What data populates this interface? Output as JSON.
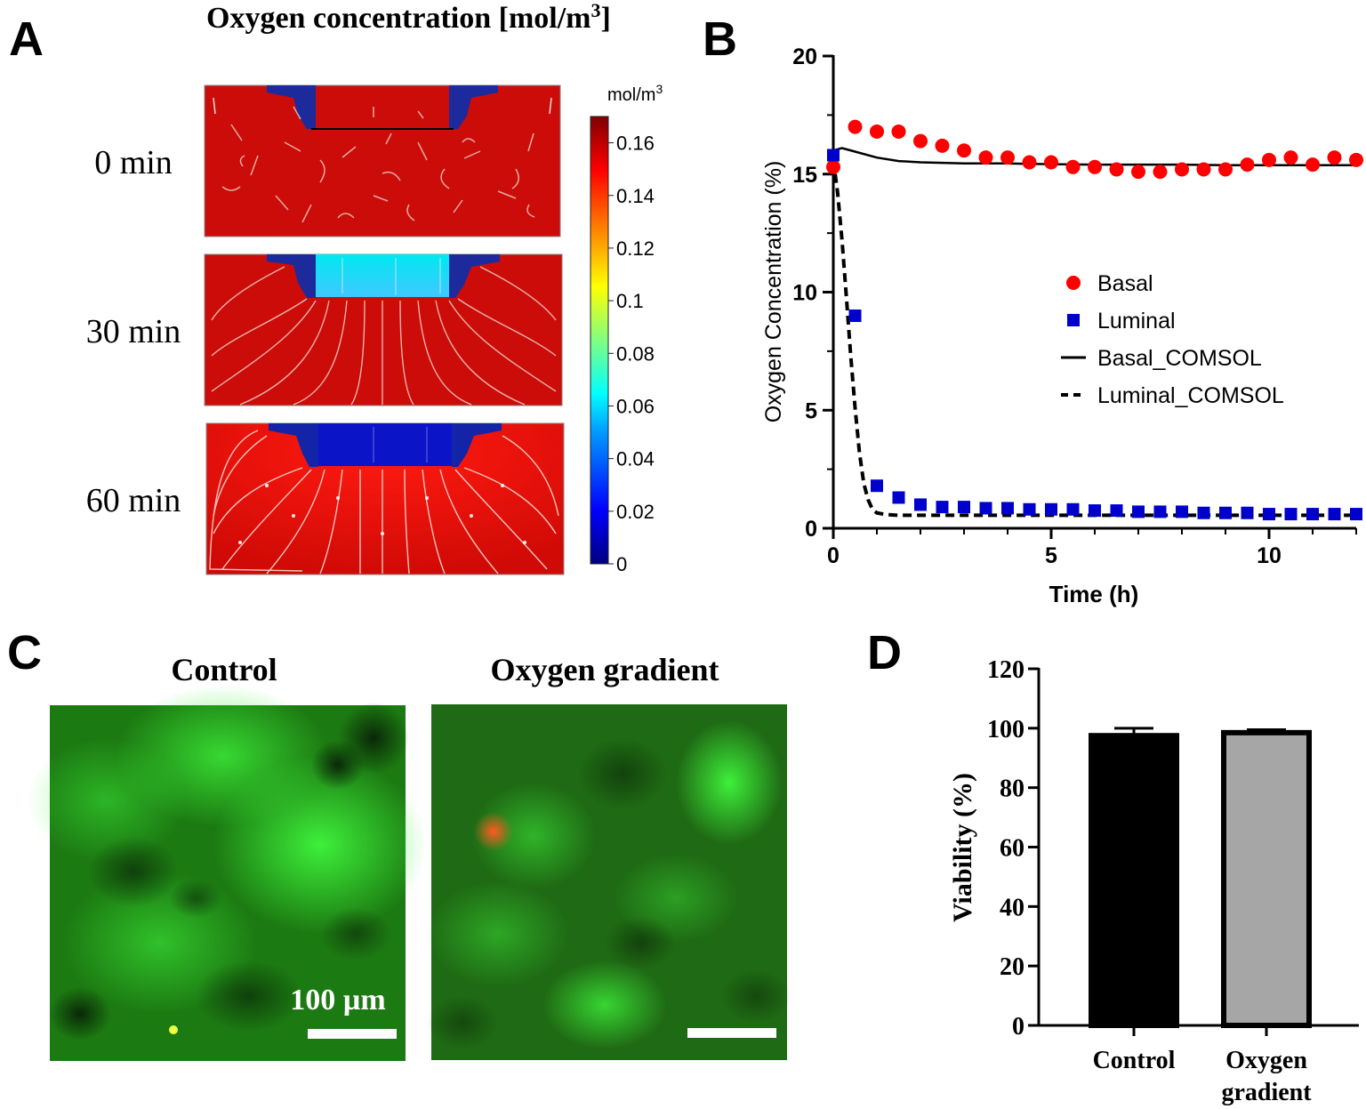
{
  "panels": {
    "a": "A",
    "b": "B",
    "c": "C",
    "d": "D"
  },
  "panel_a": {
    "title": "Oxygen concentration [mol/m",
    "title_sup": "3",
    "title_end": "]",
    "rows": [
      {
        "label": "0 min",
        "state": "initial"
      },
      {
        "label": "30 min",
        "state": "partial"
      },
      {
        "label": "60 min",
        "state": "depleted"
      }
    ],
    "colorbar": {
      "unit": "mol/m",
      "unit_sup": "3",
      "ticks": [
        "0.16",
        "0.14",
        "0.12",
        "0.1",
        "0.08",
        "0.06",
        "0.04",
        "0.02",
        "0"
      ],
      "tick_values": [
        0.16,
        0.14,
        0.12,
        0.1,
        0.08,
        0.06,
        0.04,
        0.02,
        0
      ],
      "range": [
        0,
        0.17
      ],
      "colors": [
        "#000080",
        "#0000ff",
        "#00a0ff",
        "#00ffff",
        "#80ff80",
        "#ffff00",
        "#ff8000",
        "#ff0000",
        "#800000"
      ]
    }
  },
  "panel_c": {
    "labels": [
      "Control",
      "Oxygen gradient"
    ],
    "scale_bar": "100 µm"
  },
  "chart_data": [
    {
      "type": "scatter",
      "panel": "B",
      "xlabel": "Time (h)",
      "ylabel": "Oxygen Concentration (%)",
      "xlim": [
        0,
        12
      ],
      "ylim": [
        0,
        20
      ],
      "xticks": [
        0,
        5,
        10
      ],
      "yticks": [
        0,
        5,
        10,
        15,
        20
      ],
      "legend": "center-right",
      "series": [
        {
          "name": "Basal",
          "kind": "circle",
          "color": "#ff0000",
          "x": [
            0,
            0.5,
            1,
            1.5,
            2,
            2.5,
            3,
            3.5,
            4,
            4.5,
            5,
            5.5,
            6,
            6.5,
            7,
            7.5,
            8,
            8.5,
            9,
            9.5,
            10,
            10.5,
            11,
            11.5,
            12
          ],
          "y": [
            15.3,
            17.0,
            16.8,
            16.8,
            16.4,
            16.2,
            16.0,
            15.7,
            15.7,
            15.5,
            15.5,
            15.3,
            15.3,
            15.2,
            15.1,
            15.1,
            15.2,
            15.2,
            15.2,
            15.4,
            15.6,
            15.7,
            15.4,
            15.7,
            15.6
          ]
        },
        {
          "name": "Luminal",
          "kind": "square",
          "color": "#0000cc",
          "x": [
            0,
            0.5,
            1,
            1.5,
            2,
            2.5,
            3,
            3.5,
            4,
            4.5,
            5,
            5.5,
            6,
            6.5,
            7,
            7.5,
            8,
            8.5,
            9,
            9.5,
            10,
            10.5,
            11,
            11.5,
            12
          ],
          "y": [
            15.8,
            9.0,
            1.8,
            1.3,
            1.0,
            0.9,
            0.9,
            0.85,
            0.85,
            0.8,
            0.8,
            0.8,
            0.75,
            0.75,
            0.7,
            0.7,
            0.7,
            0.65,
            0.65,
            0.65,
            0.6,
            0.6,
            0.6,
            0.6,
            0.6
          ]
        },
        {
          "name": "Basal_COMSOL",
          "kind": "line",
          "color": "#000000",
          "x": [
            0,
            0.2,
            0.5,
            1,
            1.5,
            2,
            3,
            4,
            5,
            6,
            7,
            8,
            9,
            10,
            11,
            12
          ],
          "y": [
            16.0,
            16.1,
            15.95,
            15.7,
            15.55,
            15.5,
            15.45,
            15.45,
            15.42,
            15.4,
            15.4,
            15.4,
            15.38,
            15.38,
            15.38,
            15.38
          ]
        },
        {
          "name": "Luminal_COMSOL",
          "kind": "dashed",
          "color": "#000000",
          "x": [
            0,
            0.1,
            0.2,
            0.3,
            0.4,
            0.5,
            0.6,
            0.7,
            0.8,
            0.9,
            1.0,
            1.2,
            1.5,
            2,
            3,
            4,
            6,
            8,
            10,
            12
          ],
          "y": [
            15.6,
            14.2,
            12.2,
            9.8,
            7.3,
            5.1,
            3.2,
            1.9,
            1.2,
            0.8,
            0.65,
            0.58,
            0.55,
            0.55,
            0.55,
            0.55,
            0.55,
            0.55,
            0.55,
            0.55
          ]
        }
      ]
    },
    {
      "type": "bar",
      "panel": "D",
      "categories": [
        "Control",
        "Oxygen gradient"
      ],
      "category_lines": [
        [
          "Control"
        ],
        [
          "Oxygen",
          "gradient"
        ]
      ],
      "values": [
        97.5,
        98.5
      ],
      "errors": [
        2.5,
        1.0
      ],
      "colors": [
        "#000000",
        "#a6a6a6"
      ],
      "xlabel": "",
      "ylabel": "Viability (%)",
      "ylim": [
        0,
        120
      ],
      "yticks": [
        0,
        20,
        40,
        60,
        80,
        100,
        120
      ]
    }
  ]
}
